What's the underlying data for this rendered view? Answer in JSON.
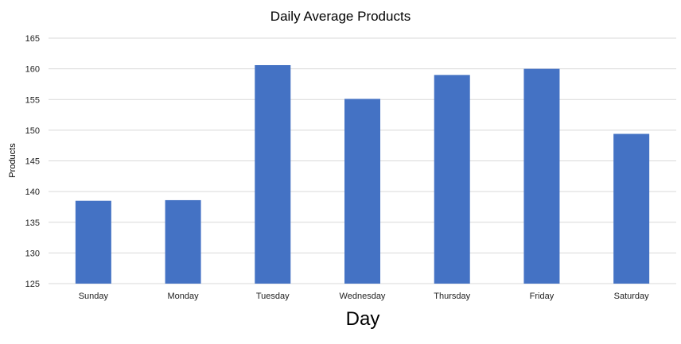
{
  "chart_data": {
    "type": "bar",
    "title": "Daily Average Products",
    "xlabel": "Day",
    "ylabel": "Products",
    "categories": [
      "Sunday",
      "Monday",
      "Tuesday",
      "Wednesday",
      "Thursday",
      "Friday",
      "Saturday"
    ],
    "series": [
      {
        "values": [
          138.5,
          138.6,
          160.6,
          155.1,
          159.0,
          160.0,
          149.4
        ]
      }
    ],
    "ylim": [
      125,
      165
    ],
    "yticks": [
      125,
      130,
      135,
      140,
      145,
      150,
      155,
      160,
      165
    ],
    "grid": true,
    "legend": "none",
    "bar_color": "#4472C4",
    "grid_color": "#d9d9d9"
  }
}
